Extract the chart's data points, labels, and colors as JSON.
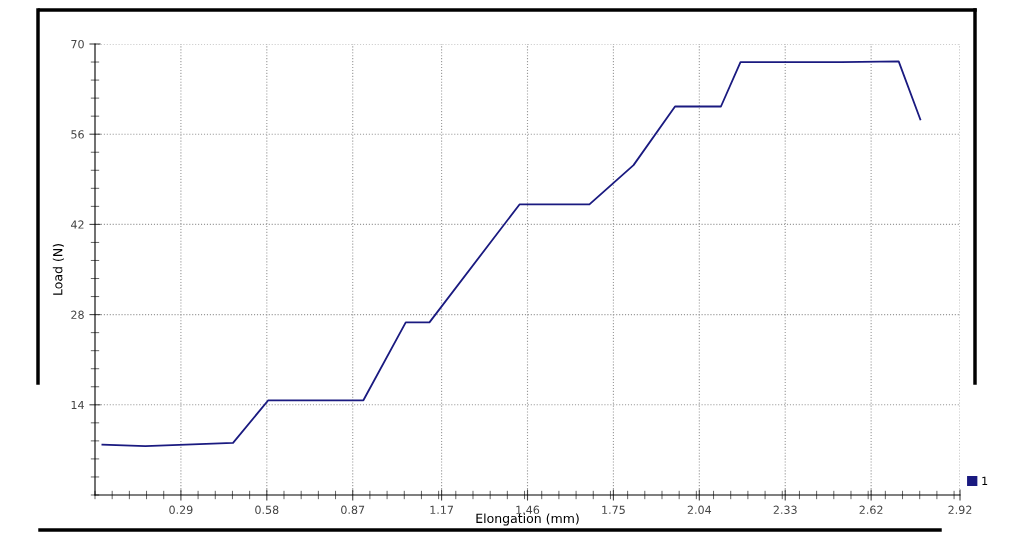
{
  "chart_data": {
    "type": "line",
    "xlabel": "Elongation (mm)",
    "ylabel": "Load (N)",
    "x": [
      0.025,
      0.17,
      0.466,
      0.585,
      0.906,
      1.049,
      1.129,
      1.433,
      1.669,
      1.818,
      1.958,
      2.113,
      2.179,
      2.52,
      2.713,
      2.786
    ],
    "series": [
      {
        "name": "1",
        "color": "#1a1a80",
        "values": [
          7.8,
          7.6,
          8.1,
          14.7,
          14.7,
          26.8,
          26.8,
          45.1,
          45.1,
          51.2,
          60.3,
          60.3,
          67.2,
          67.2,
          67.3,
          58.3
        ]
      }
    ],
    "xlim": [
      0,
      2.92
    ],
    "xticks": [
      0.29,
      0.58,
      0.87,
      1.17,
      1.46,
      1.75,
      2.04,
      2.33,
      2.62,
      2.92
    ],
    "ylim": [
      0,
      70
    ],
    "yticks": [
      14,
      28,
      42,
      56,
      70
    ],
    "grid": true,
    "legend": "bottom right",
    "marker": "none",
    "line_style": "solid"
  }
}
